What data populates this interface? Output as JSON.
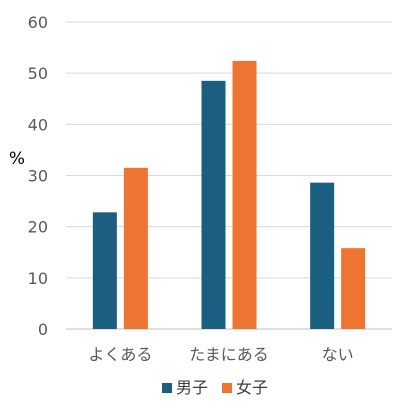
{
  "chart_data": {
    "type": "bar",
    "title": "",
    "xlabel": "",
    "ylabel": "%",
    "ylim": [
      0,
      60
    ],
    "yticks": [
      0,
      10,
      20,
      30,
      40,
      50,
      60
    ],
    "grid": true,
    "legend_position": "bottom",
    "categories": [
      "よくある",
      "たまにある",
      "ない"
    ],
    "series": [
      {
        "name": "男子",
        "color": "#1a5f80",
        "values": [
          22.8,
          48.5,
          28.6
        ]
      },
      {
        "name": "女子",
        "color": "#ed7431",
        "values": [
          31.5,
          52.4,
          15.8
        ]
      }
    ]
  }
}
